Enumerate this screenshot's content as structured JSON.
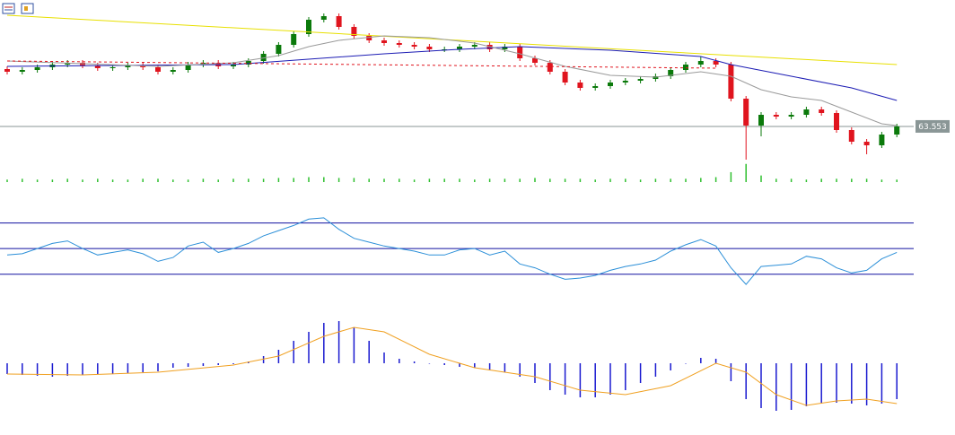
{
  "chart_data": [
    {
      "type": "candlestick",
      "ylim": [
        61.35,
        70.6
      ],
      "up_color": "#0b7a0b",
      "down_color": "#e0141e",
      "current_price": 63.553,
      "current_price_color": "#8a9696",
      "open": [
        66.75,
        66.6,
        66.7,
        66.85,
        67.0,
        67.1,
        66.95,
        66.8,
        66.85,
        66.95,
        66.85,
        66.6,
        66.7,
        67.0,
        67.1,
        66.9,
        67.0,
        67.2,
        67.6,
        68.1,
        68.7,
        69.5,
        69.7,
        69.1,
        68.6,
        68.35,
        68.2,
        68.1,
        68.0,
        67.85,
        67.85,
        68.0,
        68.1,
        67.85,
        68.0,
        67.35,
        67.1,
        66.6,
        66.0,
        65.7,
        65.8,
        66.0,
        66.1,
        66.2,
        66.35,
        66.7,
        67.0,
        67.2,
        67.0,
        65.1,
        63.6,
        64.2,
        64.1,
        64.2,
        64.5,
        64.3,
        63.35,
        62.7,
        62.5,
        63.1
      ],
      "high": [
        66.9,
        66.85,
        67.0,
        67.15,
        67.25,
        67.25,
        67.1,
        67.0,
        67.1,
        67.1,
        67.0,
        66.85,
        67.15,
        67.25,
        67.25,
        67.15,
        67.35,
        67.75,
        68.25,
        68.85,
        69.65,
        69.85,
        69.85,
        69.25,
        68.75,
        68.5,
        68.35,
        68.25,
        68.15,
        68.0,
        68.15,
        68.25,
        68.25,
        68.15,
        68.15,
        67.5,
        67.25,
        66.75,
        66.15,
        65.95,
        66.15,
        66.25,
        66.35,
        66.5,
        66.85,
        67.15,
        67.45,
        67.35,
        67.15,
        65.25,
        64.35,
        64.35,
        64.35,
        64.65,
        64.65,
        64.45,
        63.5,
        62.85,
        63.25,
        63.7
      ],
      "low": [
        66.45,
        66.45,
        66.55,
        66.7,
        66.85,
        66.8,
        66.65,
        66.65,
        66.7,
        66.7,
        66.45,
        66.45,
        66.55,
        66.85,
        66.75,
        66.75,
        66.85,
        67.05,
        67.45,
        67.95,
        68.55,
        69.35,
        68.95,
        68.45,
        68.2,
        68.05,
        67.95,
        67.85,
        67.7,
        67.7,
        67.7,
        67.85,
        67.7,
        67.7,
        67.2,
        66.95,
        66.45,
        65.85,
        65.55,
        65.55,
        65.65,
        65.85,
        65.95,
        66.05,
        66.2,
        66.55,
        66.85,
        66.85,
        64.95,
        61.7,
        63.0,
        63.95,
        63.95,
        64.05,
        64.15,
        63.2,
        62.55,
        62.0,
        62.35,
        62.95
      ],
      "close": [
        66.6,
        66.7,
        66.85,
        67.0,
        67.1,
        66.95,
        66.8,
        66.85,
        66.95,
        66.85,
        66.6,
        66.7,
        67.0,
        67.1,
        66.9,
        67.0,
        67.2,
        67.6,
        68.1,
        68.7,
        69.5,
        69.7,
        69.1,
        68.6,
        68.35,
        68.2,
        68.1,
        68.0,
        67.85,
        67.85,
        68.0,
        68.1,
        67.85,
        68.0,
        67.35,
        67.1,
        66.6,
        66.0,
        65.7,
        65.8,
        66.0,
        66.1,
        66.2,
        66.35,
        66.7,
        67.0,
        67.2,
        67.0,
        65.1,
        63.6,
        64.2,
        64.1,
        64.2,
        64.5,
        64.3,
        63.35,
        62.7,
        62.5,
        63.1,
        63.553
      ],
      "series": [
        {
          "color": "#e8e000",
          "x": [
            0,
            30,
            59
          ],
          "values": [
            69.75,
            68.35,
            67.0
          ]
        },
        {
          "color": "#1c1cb4",
          "x": [
            0,
            15,
            25,
            30,
            34,
            40,
            46,
            48,
            52,
            56,
            59
          ],
          "values": [
            66.9,
            67.0,
            67.6,
            67.85,
            68.0,
            67.8,
            67.45,
            67.0,
            66.35,
            65.7,
            65.0
          ]
        },
        {
          "color": "#9a9a9a",
          "x": [
            0,
            10,
            15,
            18,
            20,
            22,
            25,
            28,
            31,
            34,
            37,
            40,
            43,
            46,
            48,
            50,
            52,
            54,
            56,
            58,
            59
          ],
          "values": [
            67.2,
            66.9,
            67.1,
            67.5,
            68.0,
            68.35,
            68.6,
            68.5,
            68.2,
            67.6,
            66.9,
            66.4,
            66.3,
            66.6,
            66.35,
            65.6,
            65.2,
            65.0,
            64.35,
            63.7,
            63.6
          ]
        },
        {
          "color": "#e0141e",
          "style": "dashed",
          "x": [
            0,
            47
          ],
          "values": [
            67.2,
            66.8
          ]
        }
      ]
    },
    {
      "type": "bar",
      "ylim": [
        0,
        25
      ],
      "color": "#2fbf2f",
      "values": [
        3,
        4,
        3,
        3,
        4,
        3,
        4,
        3,
        3,
        4,
        4,
        3,
        3,
        4,
        3,
        4,
        4,
        4,
        5,
        5,
        6,
        6,
        5,
        5,
        4,
        4,
        4,
        3,
        4,
        4,
        4,
        3,
        4,
        4,
        4,
        5,
        4,
        4,
        4,
        3,
        4,
        4,
        3,
        4,
        4,
        4,
        5,
        6,
        12,
        22,
        8,
        4,
        4,
        3,
        4,
        4,
        4,
        4,
        3,
        3
      ]
    },
    {
      "type": "line",
      "ylim": [
        20,
        90
      ],
      "levels": [
        70,
        50,
        30
      ],
      "level_color": "#1010a0",
      "series": [
        {
          "color": "#2b8fd8",
          "values": [
            45,
            46,
            50,
            54,
            56,
            50,
            45,
            47,
            49,
            46,
            40,
            43,
            52,
            55,
            47,
            50,
            54,
            60,
            64,
            68,
            73,
            74,
            65,
            58,
            55,
            52,
            50,
            48,
            45,
            45,
            49,
            50,
            45,
            48,
            38,
            35,
            30,
            26,
            27,
            29,
            33,
            36,
            38,
            41,
            48,
            53,
            57,
            52,
            35,
            22,
            36,
            37,
            38,
            44,
            42,
            35,
            31,
            33,
            42,
            47
          ]
        }
      ]
    },
    {
      "type": "bar",
      "ylim": [
        -0.65,
        0.45
      ],
      "color": "#1a1ad0",
      "values": [
        -0.12,
        -0.13,
        -0.14,
        -0.15,
        -0.14,
        -0.13,
        -0.12,
        -0.12,
        -0.11,
        -0.1,
        -0.09,
        -0.05,
        -0.04,
        -0.03,
        -0.02,
        -0.01,
        0.02,
        0.08,
        0.15,
        0.25,
        0.35,
        0.45,
        0.47,
        0.4,
        0.25,
        0.12,
        0.05,
        0.02,
        0.0,
        -0.02,
        -0.04,
        -0.05,
        -0.08,
        -0.1,
        -0.15,
        -0.22,
        -0.3,
        -0.35,
        -0.38,
        -0.38,
        -0.35,
        -0.3,
        -0.22,
        -0.15,
        -0.08,
        0.0,
        0.06,
        0.05,
        -0.2,
        -0.4,
        -0.5,
        -0.53,
        -0.52,
        -0.48,
        -0.45,
        -0.44,
        -0.45,
        -0.47,
        -0.45,
        -0.4
      ],
      "series": [
        {
          "color": "#f0a020",
          "x": [
            0,
            5,
            10,
            15,
            18,
            21,
            23,
            25,
            28,
            31,
            35,
            38,
            41,
            44,
            47,
            49,
            51,
            53,
            55,
            57,
            59
          ],
          "values": [
            -0.12,
            -0.13,
            -0.1,
            -0.02,
            0.08,
            0.3,
            0.4,
            0.35,
            0.1,
            -0.05,
            -0.15,
            -0.3,
            -0.35,
            -0.25,
            0.0,
            -0.1,
            -0.35,
            -0.47,
            -0.42,
            -0.4,
            -0.45
          ]
        }
      ]
    }
  ]
}
